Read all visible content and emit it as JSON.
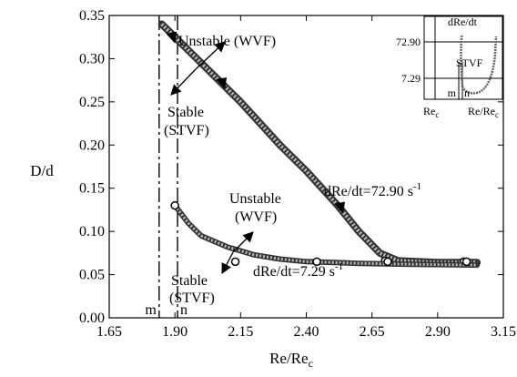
{
  "chart_data": {
    "type": "line",
    "xlabel_main": "Re/Re",
    "xlabel_sub": "c",
    "ylabel": "D/d",
    "xlim": [
      1.65,
      3.15
    ],
    "ylim": [
      0.0,
      0.35
    ],
    "x_ticks": [
      "1.65",
      "1.90",
      "2.15",
      "2.40",
      "2.65",
      "2.90",
      "3.15"
    ],
    "y_ticks": [
      "0.00",
      "0.05",
      "0.10",
      "0.15",
      "0.20",
      "0.25",
      "0.30",
      "0.35"
    ],
    "grid": false,
    "series": [
      {
        "name": "dRe/dt=72.90 s-1",
        "label_main": "dRe/dt=72.90 s",
        "label_sup": "-1",
        "points": [
          [
            1.85,
            0.34
          ],
          [
            1.95,
            0.31
          ],
          [
            2.05,
            0.28
          ],
          [
            2.15,
            0.25
          ],
          [
            2.3,
            0.2
          ],
          [
            2.4,
            0.17
          ],
          [
            2.52,
            0.13
          ],
          [
            2.6,
            0.1
          ],
          [
            2.68,
            0.075
          ],
          [
            2.75,
            0.066
          ],
          [
            2.9,
            0.064
          ],
          [
            3.05,
            0.064
          ]
        ],
        "filled_markers": [
          [
            1.89,
            0.325
          ],
          [
            2.08,
            0.272
          ],
          [
            2.53,
            0.128
          ]
        ],
        "open_markers": [
          [
            2.7,
            0.066
          ],
          [
            3.0,
            0.065
          ]
        ]
      },
      {
        "name": "dRe/dt=7.29 s-1",
        "label_main": "dRe/dt=7.29 s",
        "label_sup": "-1",
        "points": [
          [
            1.9,
            0.13
          ],
          [
            1.95,
            0.11
          ],
          [
            2.0,
            0.095
          ],
          [
            2.1,
            0.082
          ],
          [
            2.2,
            0.073
          ],
          [
            2.3,
            0.068
          ],
          [
            2.4,
            0.065
          ],
          [
            2.6,
            0.063
          ],
          [
            2.8,
            0.062
          ],
          [
            3.05,
            0.061
          ]
        ],
        "filled_markers": [],
        "open_markers": [
          [
            1.9,
            0.13
          ],
          [
            2.13,
            0.065
          ],
          [
            2.44,
            0.065
          ],
          [
            2.71,
            0.065
          ],
          [
            3.01,
            0.065
          ]
        ]
      }
    ],
    "vlines": [
      {
        "label": "m",
        "x": 1.84
      },
      {
        "label": "n",
        "x": 1.91
      }
    ],
    "annotations": {
      "upper_unstable": "Unstable (WVF)",
      "upper_stable_1": "Stable",
      "upper_stable_2": "(STVF)",
      "lower_unstable_1": "Unstable",
      "lower_unstable_2": "(WVF)",
      "lower_stable_1": "Stable",
      "lower_stable_2": "(STVF)"
    },
    "inset": {
      "ylabel": "dRe/dt",
      "y_ticks": [
        "72.90",
        "7.29"
      ],
      "xlabel_left_main": "Re",
      "xlabel_left_sub": "c",
      "xlabel_right_main": "Re/Re",
      "xlabel_right_sub": "c",
      "region_label": "STVF",
      "m_label": "m",
      "n_label": "n"
    }
  }
}
